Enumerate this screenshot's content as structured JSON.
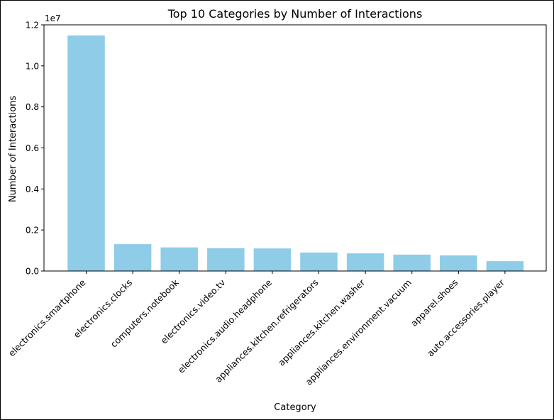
{
  "chart_data": {
    "type": "bar",
    "title": "Top 10 Categories by Number of Interactions",
    "xlabel": "Category",
    "ylabel": "Number of Interactions",
    "offset_label": "1e7",
    "categories": [
      "electronics.smartphone",
      "electronics.clocks",
      "computers.notebook",
      "electronics.video.tv",
      "electronics.audio.headphone",
      "appliances.kitchen.refrigerators",
      "appliances.kitchen.washer",
      "appliances.environment.vacuum",
      "apparel.shoes",
      "auto.accessories.player"
    ],
    "values": [
      11480000,
      1310000,
      1150000,
      1110000,
      1100000,
      900000,
      860000,
      800000,
      760000,
      480000
    ],
    "bar_color": "#8ecce8",
    "ylim": [
      0,
      12000000
    ],
    "yticks": [
      0,
      2000000,
      4000000,
      6000000,
      8000000,
      10000000,
      12000000
    ],
    "ytick_labels": [
      "0.0",
      "0.2",
      "0.4",
      "0.6",
      "0.8",
      "1.0",
      "1.2"
    ],
    "grid": false,
    "legend": "none"
  }
}
